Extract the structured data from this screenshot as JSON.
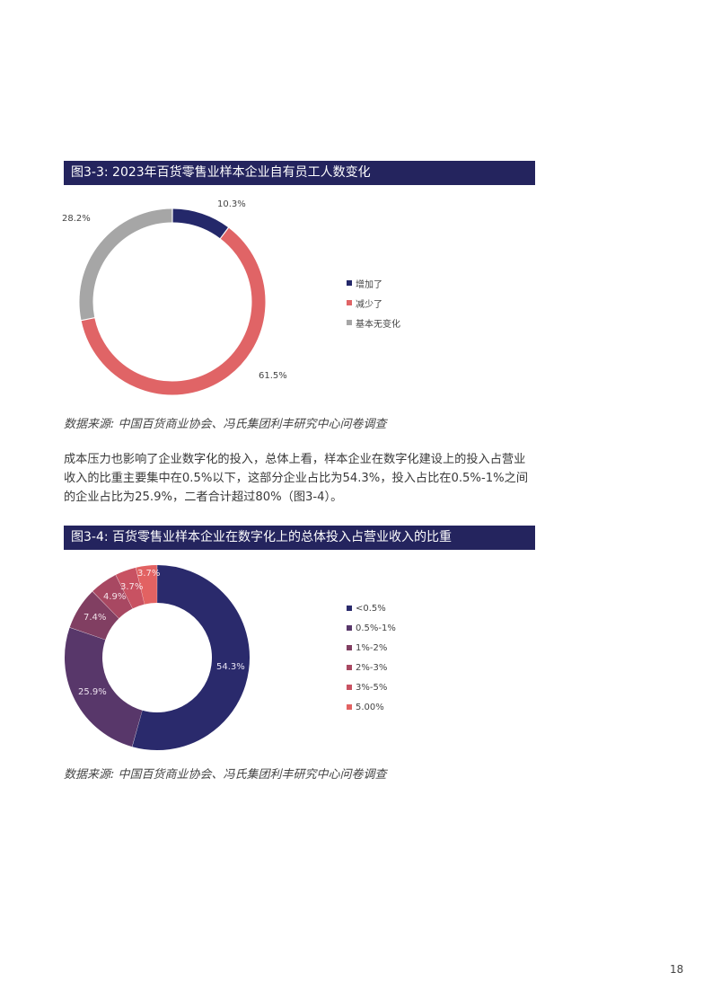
{
  "figure1": {
    "title": "图3-3: 2023年百货零售业样本企业自有员工人数变化",
    "labels": {
      "increase": "10.3%",
      "decrease": "61.5%",
      "nochange": "28.2%"
    },
    "legend": [
      "增加了",
      "减少了",
      "基本无变化"
    ],
    "source": "数据来源: 中国百货商业协会、冯氏集团利丰研究中心问卷调查"
  },
  "paragraph": "成本压力也影响了企业数字化的投入，总体上看，样本企业在数字化建设上的投入占营业收入的比重主要集中在0.5%以下，这部分企业占比为54.3%，投入占比在0.5%-1%之间的企业占比为25.9%，二者合计超过80%（图3-4）。",
  "figure2": {
    "title": "图3-4: 百货零售业样本企业在数字化上的总体投入占营业收入的比重",
    "labels": [
      "54.3%",
      "25.9%",
      "7.4%",
      "4.9%",
      "3.7%",
      "3.7%"
    ],
    "legend": [
      "<0.5%",
      "0.5%-1%",
      "1%-2%",
      "2%-3%",
      "3%-5%",
      "5.00%"
    ],
    "source": "数据来源: 中国百货商业协会、冯氏集团利丰研究中心问卷调查"
  },
  "page_number": "18",
  "colors": {
    "header_bg": "#24245e",
    "increase": "#24286a",
    "decrease": "#e06466",
    "nochange": "#a6a6a6",
    "s1": "#2a2a6c",
    "s2": "#58376a",
    "s3": "#813f62",
    "s4": "#a84862",
    "s5": "#c85262",
    "s6": "#e26262"
  },
  "chart_data": [
    {
      "type": "pie",
      "title": "图3-3: 2023年百货零售业样本企业自有员工人数变化",
      "categories": [
        "增加了",
        "减少了",
        "基本无变化"
      ],
      "values": [
        10.3,
        61.5,
        28.2
      ],
      "unit": "%",
      "donut": true,
      "legend_position": "right"
    },
    {
      "type": "pie",
      "title": "图3-4: 百货零售业样本企业在数字化上的总体投入占营业收入的比重",
      "categories": [
        "<0.5%",
        "0.5%-1%",
        "1%-2%",
        "2%-3%",
        "3%-5%",
        "5.00%"
      ],
      "values": [
        54.3,
        25.9,
        7.4,
        4.9,
        3.7,
        3.7
      ],
      "unit": "%",
      "donut": true,
      "legend_position": "right"
    }
  ]
}
